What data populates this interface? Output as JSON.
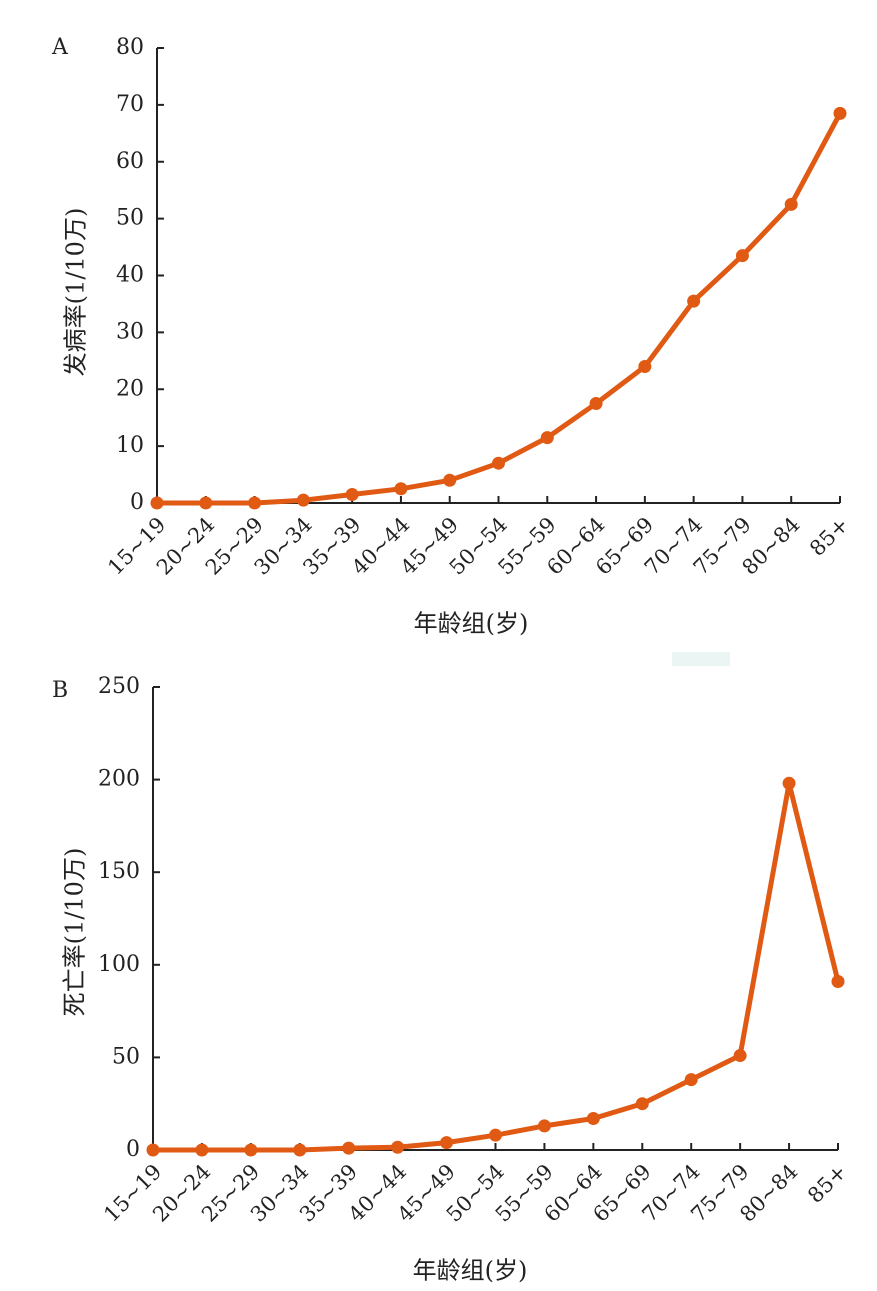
{
  "chart_data": [
    {
      "type": "line",
      "panel_label": "A",
      "xlabel": "年龄组(岁)",
      "ylabel": "发病率(1/10万)",
      "categories": [
        "15~19",
        "20~24",
        "25~29",
        "30~34",
        "35~39",
        "40~44",
        "45~49",
        "50~54",
        "55~59",
        "60~64",
        "65~69",
        "70~74",
        "75~79",
        "80~84",
        "85+"
      ],
      "ylim": [
        0,
        80
      ],
      "yticks": [
        "0",
        "10",
        "20",
        "30",
        "40",
        "50",
        "60",
        "70",
        "80"
      ],
      "grid": false,
      "series": [
        {
          "color": "#e05a14",
          "values": [
            0,
            0,
            0,
            0.5,
            1.5,
            2.5,
            4,
            7,
            11.5,
            17.5,
            24,
            35.5,
            43.5,
            52.5,
            68.5
          ]
        }
      ]
    },
    {
      "type": "line",
      "panel_label": "B",
      "xlabel": "年龄组(岁)",
      "ylabel": "死亡率(1/10万)",
      "categories": [
        "15~19",
        "20~24",
        "25~29",
        "30~34",
        "35~39",
        "40~44",
        "45~49",
        "50~54",
        "55~59",
        "60~64",
        "65~69",
        "70~74",
        "75~79",
        "80~84",
        "85+"
      ],
      "ylim": [
        0,
        250
      ],
      "yticks": [
        "0",
        "50",
        "100",
        "150",
        "200",
        "250"
      ],
      "grid": false,
      "series": [
        {
          "color": "#e05a14",
          "values": [
            0,
            0,
            0,
            0,
            1,
            1.5,
            4,
            8,
            13,
            17,
            25,
            38,
            51,
            198,
            91
          ]
        }
      ]
    }
  ]
}
